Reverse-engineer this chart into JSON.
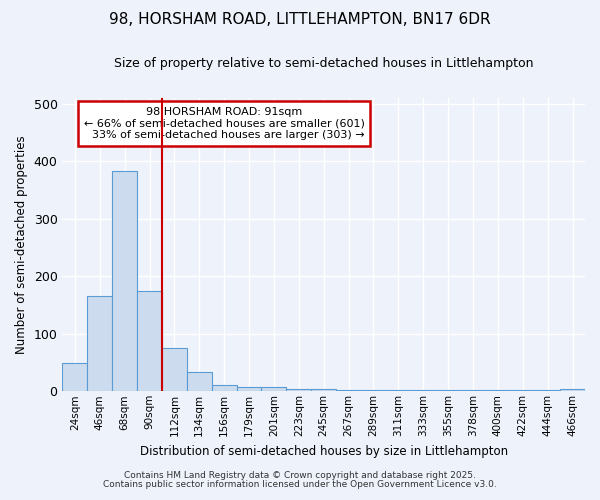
{
  "title": "98, HORSHAM ROAD, LITTLEHAMPTON, BN17 6DR",
  "subtitle": "Size of property relative to semi-detached houses in Littlehampton",
  "xlabel": "Distribution of semi-detached houses by size in Littlehampton",
  "ylabel": "Number of semi-detached properties",
  "categories": [
    "24sqm",
    "46sqm",
    "68sqm",
    "90sqm",
    "112sqm",
    "134sqm",
    "156sqm",
    "179sqm",
    "201sqm",
    "223sqm",
    "245sqm",
    "267sqm",
    "289sqm",
    "311sqm",
    "333sqm",
    "355sqm",
    "378sqm",
    "400sqm",
    "422sqm",
    "444sqm",
    "466sqm"
  ],
  "values": [
    50,
    165,
    383,
    175,
    75,
    33,
    11,
    7,
    7,
    4,
    4,
    3,
    3,
    3,
    3,
    3,
    3,
    3,
    3,
    3,
    4
  ],
  "bar_color": "#ccdcee",
  "bar_edge_color": "#5b9bd5",
  "vline_x_index": 3,
  "property_label": "98 HORSHAM ROAD: 91sqm",
  "pct_smaller": 66,
  "count_smaller": 601,
  "pct_larger": 33,
  "count_larger": 303,
  "annotation_box_color": "#ffffff",
  "annotation_box_edge": "#cc0000",
  "vline_color": "#cc0000",
  "ylim": [
    0,
    510
  ],
  "background_color": "#eef2fb",
  "grid_color": "#ffffff",
  "footer1": "Contains HM Land Registry data © Crown copyright and database right 2025.",
  "footer2": "Contains public sector information licensed under the Open Government Licence v3.0."
}
